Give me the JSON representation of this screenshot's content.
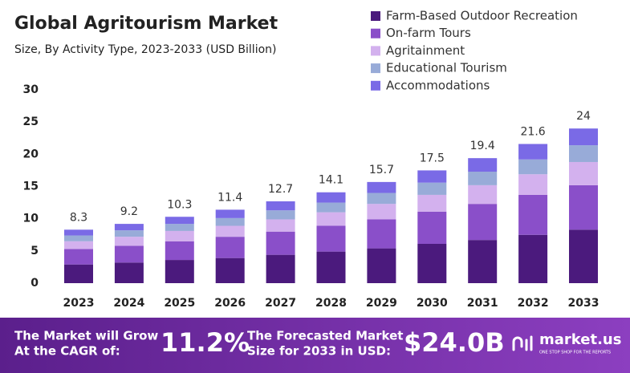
{
  "chart_data": {
    "type": "stacked_bar",
    "title": "Global Agritourism Market",
    "subtitle": "Size, By Activity Type, 2023-2033 (USD Billion)",
    "categories": [
      "2023",
      "2024",
      "2025",
      "2026",
      "2027",
      "2028",
      "2029",
      "2030",
      "2031",
      "2032",
      "2033"
    ],
    "series": [
      {
        "name": "Farm-Based Outdoor Recreation",
        "color": "#4b1a7d",
        "values": [
          2.9,
          3.2,
          3.6,
          3.9,
          4.4,
          4.9,
          5.4,
          6.1,
          6.7,
          7.5,
          8.3
        ]
      },
      {
        "name": "On-farm Tours",
        "color": "#8a4fc9",
        "values": [
          2.4,
          2.6,
          2.9,
          3.3,
          3.6,
          4.0,
          4.5,
          5.0,
          5.6,
          6.2,
          6.9
        ]
      },
      {
        "name": "Agritainment",
        "color": "#d3b1ee",
        "values": [
          1.2,
          1.4,
          1.6,
          1.7,
          1.9,
          2.1,
          2.4,
          2.6,
          2.9,
          3.2,
          3.6
        ]
      },
      {
        "name": "Educational Tourism",
        "color": "#98abd8",
        "values": [
          0.9,
          1.0,
          1.1,
          1.2,
          1.4,
          1.5,
          1.7,
          1.9,
          2.1,
          2.3,
          2.6
        ]
      },
      {
        "name": "Accommodations",
        "color": "#7a6ae6",
        "values": [
          0.9,
          1.0,
          1.1,
          1.3,
          1.4,
          1.6,
          1.7,
          1.9,
          2.1,
          2.4,
          2.6
        ]
      }
    ],
    "totals": [
      8.3,
      9.2,
      10.3,
      11.4,
      12.7,
      14.1,
      15.7,
      17.5,
      19.4,
      21.6,
      24.0
    ],
    "ylim": [
      0,
      30
    ],
    "yticks": [
      0,
      5,
      10,
      15,
      20,
      25,
      30
    ],
    "grid": false,
    "legend": "top-right"
  },
  "footer": {
    "cagr_text": [
      "The Market will Grow",
      "At the CAGR of:"
    ],
    "cagr": "11.2%",
    "forecast_text": [
      "The Forecasted Market",
      "Size for 2033 in USD:"
    ],
    "forecast": "$24.0B",
    "brand": "market.us",
    "tagline": "ONE STOP SHOP FOR THE REPORTS"
  }
}
